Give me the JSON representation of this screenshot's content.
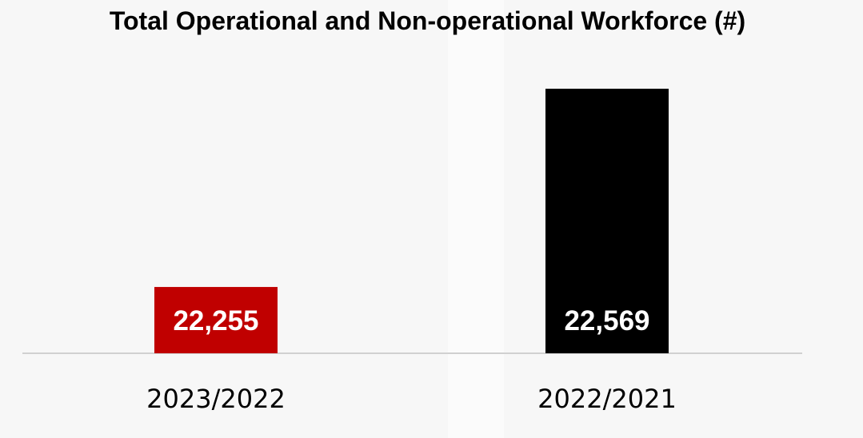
{
  "chart_data": {
    "type": "bar",
    "title": "Total Operational and Non-operational Workforce (#)",
    "categories": [
      "2023/2022",
      "2022/2021"
    ],
    "values": [
      22255,
      22569
    ],
    "data_labels": [
      "22,255",
      "22,569"
    ],
    "bar_colors": [
      "#c00000",
      "#000000"
    ],
    "xlabel": "",
    "ylabel": "",
    "grid": false,
    "legend": "none"
  }
}
